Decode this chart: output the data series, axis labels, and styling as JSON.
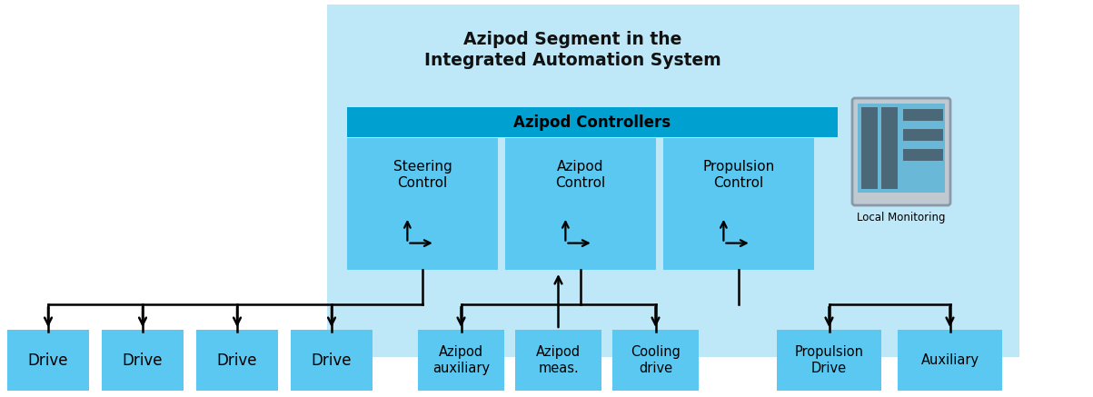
{
  "bg_color": "#ffffff",
  "light_blue_outer": "#bee8f8",
  "medium_blue": "#00a0d0",
  "box_blue": "#5ac8f0",
  "dark_text": "#111111",
  "title_text": "Azipod Segment in the\nIntegrated Automation System",
  "controllers_label": "Azipod Controllers",
  "control_boxes": [
    "Steering\nControl",
    "Azipod\nControl",
    "Propulsion\nControl"
  ],
  "local_monitoring": "Local Monitoring",
  "bottom_left_boxes": [
    "Drive",
    "Drive",
    "Drive",
    "Drive"
  ],
  "bottom_mid_boxes": [
    "Azipod\nauxiliary",
    "Azipod\nmeas.",
    "Cooling\ndrive"
  ],
  "bottom_right_boxes": [
    "Propulsion\nDrive",
    "Auxiliary"
  ],
  "lm_gray": "#a0aab0",
  "lm_inner_blue": "#6ab8d8",
  "lm_dark": "#4a6878"
}
